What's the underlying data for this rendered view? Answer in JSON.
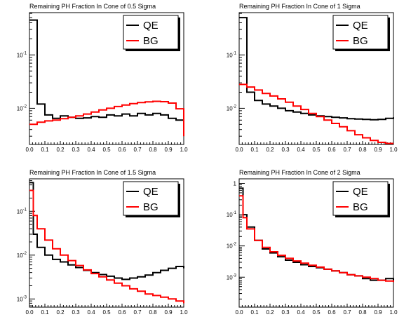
{
  "chart_data": [
    {
      "type": "line",
      "title": "Remaining PH Fraction In Cone of 0.5 Sigma",
      "xlabel": "",
      "ylabel": "",
      "xlim": [
        0,
        1
      ],
      "ylim": [
        0.0021,
        0.62
      ],
      "yscale": "log",
      "x_ticks": [
        "0.0",
        "0.1",
        "0.2",
        "0.3",
        "0.4",
        "0.5",
        "0.6",
        "0.7",
        "0.8",
        "0.9",
        "1.0"
      ],
      "y_ticks": [
        {
          "value": 0.1,
          "label": "10^-1"
        },
        {
          "value": 0.01,
          "label": "10^-2"
        }
      ],
      "legend": {
        "position": "top-right",
        "entries": [
          "QE",
          "BG"
        ]
      },
      "series": [
        {
          "name": "QE",
          "color": "#000000",
          "x": [
            0.0,
            0.05,
            0.1,
            0.15,
            0.2,
            0.25,
            0.3,
            0.35,
            0.4,
            0.45,
            0.5,
            0.55,
            0.6,
            0.65,
            0.7,
            0.75,
            0.8,
            0.85,
            0.9,
            0.95,
            1.0
          ],
          "y": [
            0.45,
            0.012,
            0.0075,
            0.0065,
            0.0072,
            0.0068,
            0.0065,
            0.0066,
            0.007,
            0.0068,
            0.0075,
            0.0072,
            0.0078,
            0.0072,
            0.008,
            0.0075,
            0.008,
            0.0075,
            0.0065,
            0.006,
            0.0045
          ]
        },
        {
          "name": "BG",
          "color": "#ff0000",
          "x": [
            0.0,
            0.05,
            0.1,
            0.15,
            0.2,
            0.25,
            0.3,
            0.35,
            0.4,
            0.45,
            0.5,
            0.55,
            0.6,
            0.65,
            0.7,
            0.75,
            0.8,
            0.85,
            0.9,
            0.95,
            1.0
          ],
          "y": [
            0.005,
            0.0055,
            0.0058,
            0.006,
            0.0064,
            0.0068,
            0.0072,
            0.0078,
            0.0085,
            0.0093,
            0.01,
            0.0108,
            0.0115,
            0.0122,
            0.0128,
            0.0132,
            0.0135,
            0.0133,
            0.0125,
            0.0098,
            0.003
          ]
        }
      ]
    },
    {
      "type": "line",
      "title": "Remaining PH Fraction In Cone of 1 Sigma",
      "xlabel": "",
      "ylabel": "",
      "xlim": [
        0,
        1
      ],
      "ylim": [
        0.0021,
        0.62
      ],
      "yscale": "log",
      "x_ticks": [
        "0.0",
        "0.1",
        "0.2",
        "0.3",
        "0.4",
        "0.5",
        "0.6",
        "0.7",
        "0.8",
        "0.9",
        "1.0"
      ],
      "y_ticks": [
        {
          "value": 0.1,
          "label": "10^-1"
        },
        {
          "value": 0.01,
          "label": "10^-2"
        }
      ],
      "legend": {
        "position": "top-right",
        "entries": [
          "QE",
          "BG"
        ]
      },
      "series": [
        {
          "name": "QE",
          "color": "#000000",
          "x": [
            0.0,
            0.05,
            0.1,
            0.15,
            0.2,
            0.25,
            0.3,
            0.35,
            0.4,
            0.45,
            0.5,
            0.55,
            0.6,
            0.65,
            0.7,
            0.75,
            0.8,
            0.85,
            0.9,
            0.95,
            1.0
          ],
          "y": [
            0.5,
            0.02,
            0.014,
            0.012,
            0.011,
            0.01,
            0.009,
            0.0085,
            0.008,
            0.0075,
            0.0072,
            0.007,
            0.0068,
            0.0066,
            0.0064,
            0.0063,
            0.0062,
            0.0061,
            0.0062,
            0.0065,
            0.0068
          ]
        },
        {
          "name": "BG",
          "color": "#ff0000",
          "x": [
            0.0,
            0.05,
            0.1,
            0.15,
            0.2,
            0.25,
            0.3,
            0.35,
            0.4,
            0.45,
            0.5,
            0.55,
            0.6,
            0.65,
            0.7,
            0.75,
            0.8,
            0.85,
            0.9,
            0.95
          ],
          "y": [
            0.028,
            0.025,
            0.022,
            0.019,
            0.017,
            0.015,
            0.013,
            0.011,
            0.0095,
            0.008,
            0.007,
            0.006,
            0.0052,
            0.0045,
            0.0038,
            0.0032,
            0.0028,
            0.0025,
            0.0023,
            0.0022
          ]
        }
      ]
    },
    {
      "type": "line",
      "title": "Remaining PH Fraction In Cone of 1.5 Sigma",
      "xlabel": "",
      "ylabel": "",
      "xlim": [
        0,
        1
      ],
      "ylim": [
        0.00065,
        0.55
      ],
      "yscale": "log",
      "x_ticks": [
        "0.0",
        "0.1",
        "0.2",
        "0.3",
        "0.4",
        "0.5",
        "0.6",
        "0.7",
        "0.8",
        "0.9",
        "1.0"
      ],
      "y_ticks": [
        {
          "value": 0.1,
          "label": "10^-1"
        },
        {
          "value": 0.01,
          "label": "10^-2"
        },
        {
          "value": 0.001,
          "label": "10^-3"
        }
      ],
      "legend": {
        "position": "top-right",
        "entries": [
          "QE",
          "BG"
        ]
      },
      "series": [
        {
          "name": "QE",
          "color": "#000000",
          "x": [
            0.0,
            0.025,
            0.05,
            0.1,
            0.15,
            0.2,
            0.25,
            0.3,
            0.35,
            0.4,
            0.45,
            0.5,
            0.55,
            0.6,
            0.65,
            0.7,
            0.75,
            0.8,
            0.85,
            0.9,
            0.95,
            1.0
          ],
          "y": [
            0.45,
            0.03,
            0.015,
            0.01,
            0.008,
            0.007,
            0.006,
            0.0052,
            0.0045,
            0.004,
            0.0036,
            0.0033,
            0.003,
            0.0028,
            0.003,
            0.0032,
            0.0035,
            0.004,
            0.0045,
            0.005,
            0.0055,
            0.005
          ]
        },
        {
          "name": "BG",
          "color": "#ff0000",
          "x": [
            0.0,
            0.025,
            0.05,
            0.1,
            0.15,
            0.2,
            0.25,
            0.3,
            0.35,
            0.4,
            0.45,
            0.5,
            0.55,
            0.6,
            0.65,
            0.7,
            0.75,
            0.8,
            0.85,
            0.9,
            0.95,
            1.0
          ],
          "y": [
            0.3,
            0.08,
            0.04,
            0.022,
            0.014,
            0.01,
            0.0075,
            0.0058,
            0.0046,
            0.0038,
            0.0032,
            0.0027,
            0.0023,
            0.002,
            0.0017,
            0.0015,
            0.0013,
            0.0012,
            0.0011,
            0.001,
            0.0009,
            0.0008
          ]
        }
      ]
    },
    {
      "type": "line",
      "title": "Remaining PH Fraction In Cone of 2 Sigma",
      "xlabel": "",
      "ylabel": "",
      "xlim": [
        0,
        1
      ],
      "ylim": [
        0.00011,
        1.4
      ],
      "yscale": "log",
      "x_ticks": [
        "0.0",
        "0.1",
        "0.2",
        "0.3",
        "0.4",
        "0.5",
        "0.6",
        "0.7",
        "0.8",
        "0.9",
        "1.0"
      ],
      "y_ticks": [
        {
          "value": 1,
          "label": "1"
        },
        {
          "value": 0.1,
          "label": "10^-1"
        },
        {
          "value": 0.01,
          "label": "10^-2"
        },
        {
          "value": 0.001,
          "label": "10^-3"
        }
      ],
      "legend": {
        "position": "top-right",
        "entries": [
          "QE",
          "BG"
        ]
      },
      "series": [
        {
          "name": "QE",
          "color": "#000000",
          "x": [
            0.0,
            0.025,
            0.05,
            0.1,
            0.15,
            0.2,
            0.25,
            0.3,
            0.35,
            0.4,
            0.45,
            0.5,
            0.55,
            0.6,
            0.65,
            0.7,
            0.75,
            0.8,
            0.85,
            0.9,
            0.95,
            1.0
          ],
          "y": [
            0.7,
            0.1,
            0.04,
            0.015,
            0.008,
            0.006,
            0.0045,
            0.0035,
            0.003,
            0.0025,
            0.0022,
            0.002,
            0.0018,
            0.0016,
            0.0014,
            0.0012,
            0.0011,
            0.0009,
            0.0008,
            0.0008,
            0.0009,
            0.0008
          ]
        },
        {
          "name": "BG",
          "color": "#ff0000",
          "x": [
            0.0,
            0.025,
            0.05,
            0.1,
            0.15,
            0.2,
            0.25,
            0.3,
            0.35,
            0.4,
            0.45,
            0.5,
            0.55,
            0.6,
            0.65,
            0.7,
            0.75,
            0.8,
            0.85,
            0.9,
            0.95,
            1.0
          ],
          "y": [
            0.4,
            0.08,
            0.035,
            0.015,
            0.009,
            0.0065,
            0.005,
            0.004,
            0.0033,
            0.0028,
            0.0024,
            0.0021,
            0.0018,
            0.0016,
            0.0014,
            0.0012,
            0.0011,
            0.001,
            0.0009,
            0.0008,
            0.00075,
            0.0007
          ]
        }
      ]
    }
  ]
}
